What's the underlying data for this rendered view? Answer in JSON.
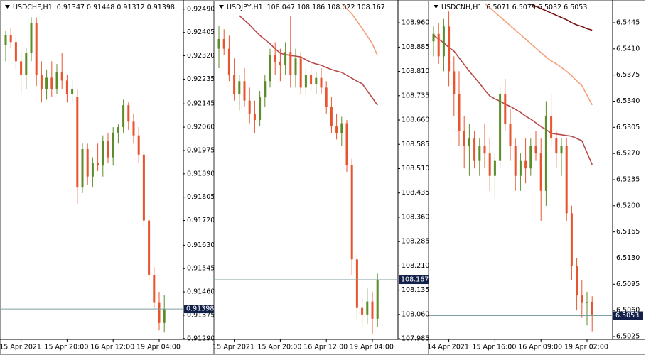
{
  "chart_data": [
    {
      "type": "candlestick",
      "title": "USDCHF,H1",
      "up_color": "#5b8c2a",
      "down_color": "#e8542e",
      "categories": [
        null,
        null,
        null,
        "15 Apr 2021",
        null,
        null,
        null,
        null,
        null,
        null,
        null,
        null,
        "15 Apr 20:00",
        null,
        null,
        null,
        null,
        null,
        null,
        null,
        null,
        "16 Apr 12:00",
        null,
        null,
        null,
        null,
        null,
        null,
        null,
        null,
        "19 Apr 04:00",
        null
      ],
      "open": [
        0.9236,
        0.92395,
        0.9237,
        0.923,
        0.9225,
        0.9233,
        0.9244,
        0.9225,
        0.922,
        0.9224,
        0.922,
        0.9226,
        0.9223,
        0.9218,
        0.9217,
        0.9184,
        0.9198,
        0.9188,
        0.9193,
        0.9192,
        0.9201,
        0.9195,
        0.9204,
        0.9206,
        0.9214,
        0.9208,
        0.9203,
        0.9196,
        0.9172,
        0.9152,
        0.9142,
        0.91347
      ],
      "high": [
        0.9241,
        0.9242,
        0.9239,
        0.9234,
        0.9235,
        0.9246,
        0.9246,
        0.923,
        0.9227,
        0.923,
        0.9229,
        0.9233,
        0.9225,
        0.9223,
        0.922,
        0.92,
        0.92,
        0.9195,
        0.92,
        0.9203,
        0.9204,
        0.9206,
        0.9207,
        0.9216,
        0.9215,
        0.9211,
        0.9206,
        0.9197,
        0.9174,
        0.9155,
        0.9146,
        0.91448
      ],
      "low": [
        0.923,
        0.9235,
        0.9227,
        0.9218,
        0.922,
        0.923,
        0.9221,
        0.9215,
        0.9216,
        0.9217,
        0.9218,
        0.922,
        0.9215,
        0.9215,
        0.9178,
        0.9182,
        0.9185,
        0.9184,
        0.919,
        0.9188,
        0.9193,
        0.9192,
        0.92,
        0.9204,
        0.9205,
        0.92,
        0.9193,
        0.917,
        0.915,
        0.914,
        0.9132,
        0.91312
      ],
      "close": [
        0.92395,
        0.9237,
        0.923,
        0.9225,
        0.9233,
        0.9244,
        0.9225,
        0.922,
        0.9224,
        0.922,
        0.9226,
        0.9223,
        0.9218,
        0.922,
        0.9184,
        0.9198,
        0.9188,
        0.9193,
        0.9192,
        0.9201,
        0.9195,
        0.9204,
        0.9206,
        0.9214,
        0.9208,
        0.9203,
        0.9196,
        0.9172,
        0.9152,
        0.9142,
        0.91347,
        0.91398
      ],
      "lines": [],
      "ylim": [
        0.91287,
        0.92518
      ],
      "yticks": [
        {
          "value": 0.9249,
          "label": "0.92490"
        },
        {
          "value": 0.92405,
          "label": "0.92405"
        },
        {
          "value": 0.9232,
          "label": "0.92320"
        },
        {
          "value": 0.92235,
          "label": "0.92235"
        },
        {
          "value": 0.92145,
          "label": "0.92145"
        },
        {
          "value": 0.9206,
          "label": "0.92060"
        },
        {
          "value": 0.91975,
          "label": "0.91975"
        },
        {
          "value": 0.9189,
          "label": "0.91890"
        },
        {
          "value": 0.91805,
          "label": "0.91805"
        },
        {
          "value": 0.9172,
          "label": "0.91720"
        },
        {
          "value": 0.9163,
          "label": "0.91630"
        },
        {
          "value": 0.91545,
          "label": "0.91545"
        },
        {
          "value": 0.9146,
          "label": "0.91460"
        },
        {
          "value": 0.91375,
          "label": "0.91375"
        },
        {
          "value": 0.9129,
          "label": "0.91290"
        }
      ]
    },
    {
      "type": "candlestick",
      "title": "USDJPY,H1",
      "up_color": "#5b8c2a",
      "down_color": "#e8542e",
      "categories": [
        null,
        null,
        null,
        "15 Apr 2021",
        null,
        null,
        null,
        null,
        null,
        null,
        null,
        null,
        "15 Apr 20:00",
        null,
        null,
        null,
        null,
        null,
        null,
        null,
        null,
        "16 Apr 12:00",
        null,
        null,
        null,
        null,
        null,
        null,
        null,
        null,
        "19 Apr 04:00",
        null
      ],
      "open": [
        108.88,
        108.91,
        108.88,
        108.8,
        108.74,
        108.78,
        108.72,
        108.68,
        108.66,
        108.73,
        108.78,
        108.86,
        108.84,
        108.83,
        108.87,
        108.8,
        108.85,
        108.76,
        108.8,
        108.77,
        108.79,
        108.76,
        108.7,
        108.64,
        108.62,
        108.65,
        108.52,
        108.23,
        108.08,
        108.06,
        108.1,
        108.047
      ],
      "high": [
        108.95,
        108.94,
        108.92,
        108.85,
        108.8,
        108.82,
        108.76,
        108.72,
        108.75,
        108.8,
        108.88,
        108.9,
        108.88,
        108.9,
        108.98,
        108.88,
        108.87,
        108.82,
        108.83,
        108.81,
        108.82,
        108.78,
        108.73,
        108.68,
        108.67,
        108.66,
        108.54,
        108.25,
        108.11,
        108.14,
        108.13,
        108.186
      ],
      "low": [
        108.82,
        108.86,
        108.78,
        108.72,
        108.69,
        108.7,
        108.65,
        108.62,
        108.64,
        108.7,
        108.76,
        108.8,
        108.78,
        108.8,
        108.76,
        108.76,
        108.74,
        108.73,
        108.75,
        108.74,
        108.74,
        108.68,
        108.62,
        108.6,
        108.58,
        108.5,
        108.18,
        108.04,
        108.02,
        108.03,
        108.0,
        108.022
      ],
      "close": [
        108.91,
        108.88,
        108.8,
        108.74,
        108.78,
        108.72,
        108.68,
        108.66,
        108.73,
        108.78,
        108.86,
        108.84,
        108.83,
        108.87,
        108.8,
        108.85,
        108.76,
        108.8,
        108.77,
        108.79,
        108.76,
        108.7,
        108.64,
        108.62,
        108.65,
        108.52,
        108.23,
        108.08,
        108.06,
        108.1,
        108.047,
        108.167
      ],
      "lines": [
        {
          "color": "#b84848",
          "values": [
            null,
            null,
            null,
            null,
            108.982,
            108.968,
            108.954,
            108.937,
            108.921,
            108.908,
            108.895,
            108.88,
            108.866,
            108.862,
            108.859,
            108.857,
            108.855,
            108.846,
            108.838,
            108.833,
            108.829,
            108.822,
            108.816,
            108.811,
            108.807,
            108.798,
            108.789,
            108.78,
            108.772,
            108.75,
            108.728,
            108.706
          ]
        },
        {
          "color": "#f4a07a",
          "values": [
            null,
            null,
            null,
            null,
            null,
            null,
            null,
            null,
            null,
            null,
            null,
            null,
            null,
            null,
            null,
            null,
            null,
            null,
            null,
            null,
            null,
            null,
            null,
            null,
            109.019,
            109.003,
            108.987,
            108.965,
            108.943,
            108.919,
            108.895,
            108.859
          ]
        }
      ],
      "ylim": [
        107.983,
        109.026
      ],
      "yticks": [
        {
          "value": 108.96,
          "label": "108.960"
        },
        108.885,
        {
          "value": 108.81,
          "label": "108.810"
        },
        108.735,
        {
          "value": 108.66,
          "label": "108.660"
        },
        108.585,
        {
          "value": 108.51,
          "label": "108.510"
        },
        108.435,
        {
          "value": 108.36,
          "label": "108.360"
        },
        108.285,
        {
          "value": 108.21,
          "label": "108.210"
        },
        108.135,
        {
          "value": 108.06,
          "label": "108.060"
        },
        107.985
      ]
    },
    {
      "type": "candlestick",
      "title": "USDCNH,H1",
      "up_color": "#5b8c2a",
      "down_color": "#e8542e",
      "categories": [
        null,
        null,
        null,
        "14 Apr 2021",
        null,
        null,
        null,
        null,
        null,
        null,
        null,
        null,
        "15 Apr 16:00",
        null,
        null,
        null,
        null,
        null,
        null,
        null,
        null,
        "16 Apr 09:00",
        null,
        null,
        null,
        null,
        null,
        null,
        null,
        null,
        "19 Apr 02:00",
        null
      ],
      "open": [
        6.542,
        6.543,
        6.54,
        6.544,
        6.538,
        6.535,
        6.53,
        6.528,
        6.529,
        6.526,
        6.528,
        6.527,
        6.524,
        6.526,
        6.535,
        6.531,
        6.528,
        6.524,
        6.526,
        6.525,
        6.528,
        6.527,
        6.522,
        6.532,
        6.529,
        6.527,
        6.528,
        6.519,
        6.512,
        6.508,
        6.507,
        6.5071
      ],
      "high": [
        6.544,
        6.5445,
        6.545,
        6.546,
        6.54,
        6.538,
        6.532,
        6.531,
        6.53,
        6.529,
        6.531,
        6.529,
        6.527,
        6.536,
        6.537,
        6.533,
        6.529,
        6.527,
        6.529,
        6.529,
        6.53,
        6.529,
        6.534,
        6.535,
        6.53,
        6.529,
        6.529,
        6.52,
        6.513,
        6.51,
        6.5085,
        6.5079
      ],
      "low": [
        6.54,
        6.539,
        6.538,
        6.536,
        6.532,
        6.528,
        6.525,
        6.524,
        6.525,
        6.524,
        6.525,
        6.522,
        6.521,
        6.525,
        6.53,
        6.526,
        6.522,
        6.522,
        6.523,
        6.524,
        6.526,
        6.518,
        6.52,
        6.528,
        6.525,
        6.524,
        6.518,
        6.51,
        6.506,
        6.505,
        6.504,
        6.5032
      ],
      "close": [
        6.543,
        6.54,
        6.544,
        6.538,
        6.535,
        6.53,
        6.528,
        6.529,
        6.526,
        6.528,
        6.527,
        6.524,
        6.526,
        6.535,
        6.531,
        6.528,
        6.524,
        6.526,
        6.525,
        6.528,
        6.527,
        6.522,
        6.532,
        6.529,
        6.527,
        6.528,
        6.519,
        6.512,
        6.508,
        6.507,
        6.5071,
        6.5053
      ],
      "lines": [
        {
          "color": "#7a1010",
          "values": [
            null,
            null,
            null,
            null,
            null,
            null,
            null,
            null,
            null,
            null,
            null,
            null,
            null,
            null,
            null,
            null,
            null,
            null,
            null,
            6.547,
            6.5467,
            6.5464,
            6.5461,
            6.5458,
            6.5455,
            6.5452,
            6.5449,
            6.5445,
            6.5442,
            6.544,
            6.5437,
            6.5435
          ]
        },
        {
          "color": "#f4a07a",
          "values": [
            null,
            null,
            null,
            null,
            null,
            null,
            null,
            null,
            null,
            null,
            6.5471,
            6.5465,
            6.5459,
            6.5453,
            6.5447,
            6.5441,
            6.5435,
            6.5429,
            6.5423,
            6.5417,
            6.5411,
            6.5405,
            6.5399,
            6.5394,
            6.539,
            6.5385,
            6.538,
            6.5374,
            6.5367,
            6.5361,
            6.5348,
            6.5335
          ]
        },
        {
          "color": "#b84848",
          "values": [
            6.5428,
            6.5423,
            6.5418,
            6.5412,
            6.5407,
            6.5398,
            6.5389,
            6.538,
            6.5372,
            6.5364,
            6.5355,
            6.5347,
            6.5343,
            6.534,
            6.5336,
            6.5333,
            6.5329,
            6.5325,
            6.532,
            6.5316,
            6.5311,
            6.5306,
            6.5302,
            6.5297,
            6.5296,
            6.5295,
            6.5294,
            6.5293,
            6.529,
            6.5287,
            6.5271,
            6.5255
          ]
        }
      ],
      "ylim": [
        6.50212,
        6.54735
      ],
      "yticks": [
        6.5445,
        {
          "value": 6.541,
          "label": "6.5410"
        },
        6.5375,
        {
          "value": 6.534,
          "label": "6.5340"
        },
        6.5305,
        {
          "value": 6.527,
          "label": "6.5270"
        },
        6.5235,
        {
          "value": 6.52,
          "label": "6.5200"
        },
        6.5165,
        {
          "value": 6.513,
          "label": "6.5130"
        },
        6.5095,
        {
          "value": 6.506,
          "label": "6.5060"
        },
        6.5025
      ]
    }
  ]
}
